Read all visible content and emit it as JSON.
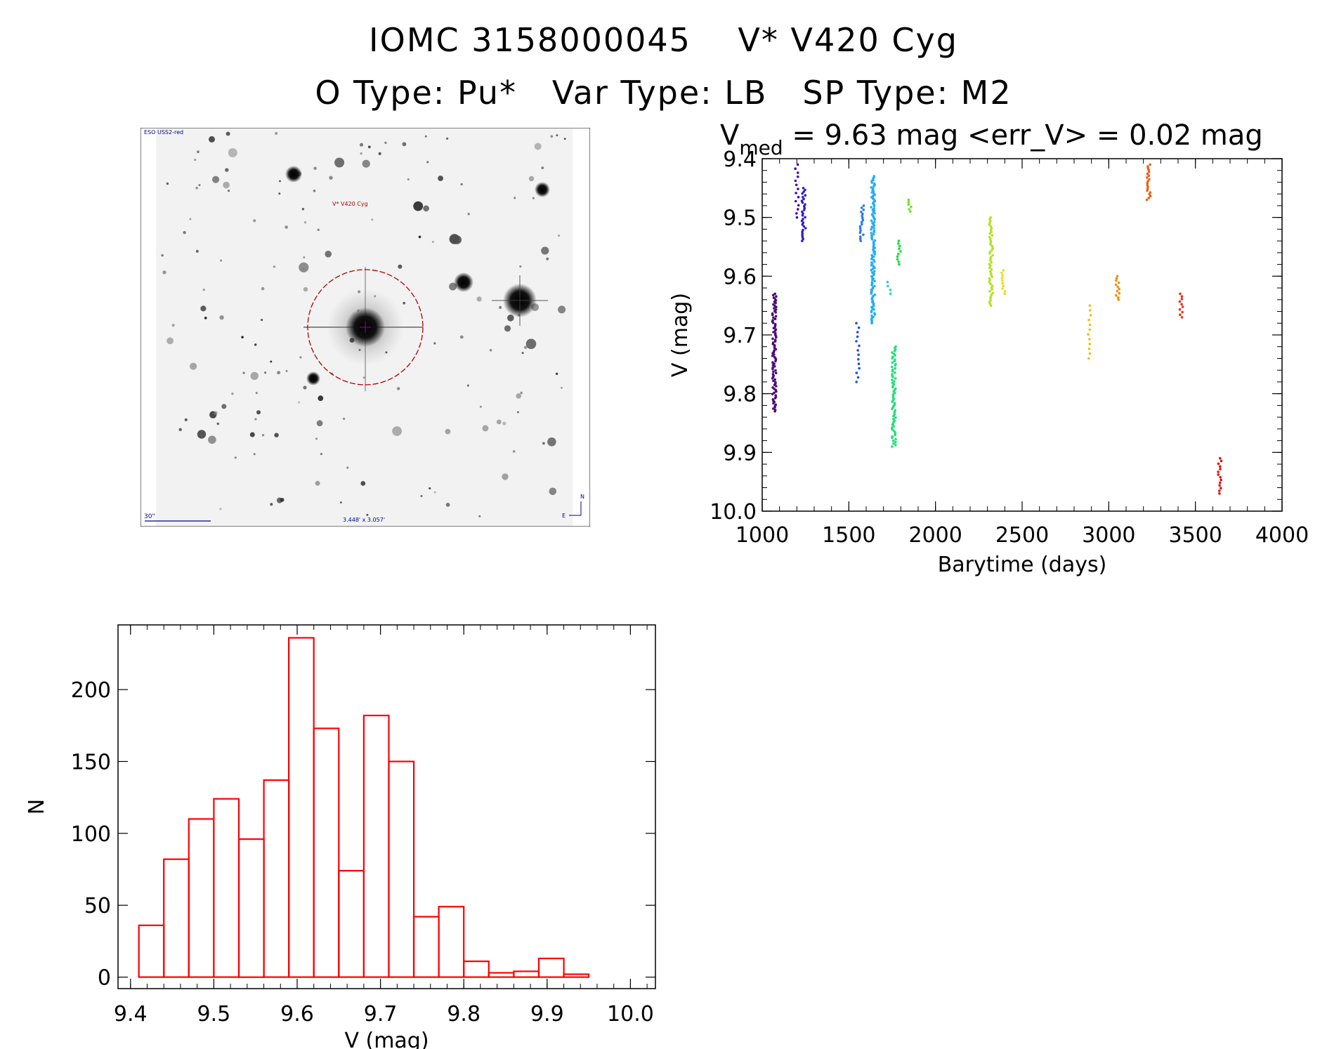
{
  "header": {
    "line1": "IOMC 3158000045    V* V420 Cyg",
    "line2": "O Type: Pu*   Var Type: LB   SP Type: M2"
  },
  "finder": {
    "top_left_label": "ESO USS2-red",
    "target_label": "V* V420 Cyg",
    "scale_label": "30\"",
    "size_label": "3.448' x 3.057'",
    "north_label": "N",
    "east_label": "E"
  },
  "lightcurve": {
    "title_v": "V",
    "title_sub": "med",
    "title_rest": " = 9.63 mag <err_V> = 0.02 mag"
  },
  "chart_data": [
    {
      "type": "scatter",
      "xlabel": "Barytime (days)",
      "ylabel": "V (mag)",
      "xlim": [
        1000,
        4000
      ],
      "ylim": [
        10.0,
        9.4
      ],
      "y_inverted": true,
      "x_ticks": [
        "1000",
        "1500",
        "2000",
        "2500",
        "3000",
        "3500",
        "4000"
      ],
      "y_ticks": [
        "9.4",
        "9.5",
        "9.6",
        "9.7",
        "9.8",
        "9.9",
        "10.0"
      ],
      "groups": [
        {
          "x": 1070,
          "ymin": 9.63,
          "ymax": 9.83,
          "n": 90,
          "color": "#4b0a7a"
        },
        {
          "x": 1200,
          "ymin": 9.41,
          "ymax": 9.5,
          "n": 14,
          "color": "#3c10a8"
        },
        {
          "x": 1240,
          "ymin": 9.45,
          "ymax": 9.54,
          "n": 30,
          "color": "#2a1fd0"
        },
        {
          "x": 1550,
          "ymin": 9.68,
          "ymax": 9.78,
          "n": 14,
          "color": "#1f52e0"
        },
        {
          "x": 1575,
          "ymin": 9.48,
          "ymax": 9.54,
          "n": 18,
          "color": "#2b78f0"
        },
        {
          "x": 1640,
          "ymin": 9.43,
          "ymax": 9.68,
          "n": 120,
          "color": "#22aef0"
        },
        {
          "x": 1730,
          "ymin": 9.61,
          "ymax": 9.63,
          "n": 4,
          "color": "#22d8b0"
        },
        {
          "x": 1760,
          "ymin": 9.72,
          "ymax": 9.89,
          "n": 70,
          "color": "#22e07a"
        },
        {
          "x": 1790,
          "ymin": 9.54,
          "ymax": 9.58,
          "n": 10,
          "color": "#22d840"
        },
        {
          "x": 1850,
          "ymin": 9.47,
          "ymax": 9.49,
          "n": 6,
          "color": "#6ee020"
        },
        {
          "x": 2320,
          "ymin": 9.5,
          "ymax": 9.65,
          "n": 50,
          "color": "#b8e020"
        },
        {
          "x": 2390,
          "ymin": 9.59,
          "ymax": 9.63,
          "n": 10,
          "color": "#e8e010"
        },
        {
          "x": 2890,
          "ymin": 9.65,
          "ymax": 9.74,
          "n": 12,
          "color": "#f0c010"
        },
        {
          "x": 3050,
          "ymin": 9.6,
          "ymax": 9.64,
          "n": 12,
          "color": "#f09010"
        },
        {
          "x": 3230,
          "ymin": 9.41,
          "ymax": 9.47,
          "n": 20,
          "color": "#f06018"
        },
        {
          "x": 3420,
          "ymin": 9.63,
          "ymax": 9.67,
          "n": 10,
          "color": "#e83018"
        },
        {
          "x": 3640,
          "ymin": 9.91,
          "ymax": 9.97,
          "n": 14,
          "color": "#e01010"
        }
      ]
    },
    {
      "type": "bar",
      "xlabel": "V (mag)",
      "ylabel": "N",
      "xlim": [
        9.385,
        10.03
      ],
      "ylim": [
        -8,
        245
      ],
      "x_ticks": [
        "9.4",
        "9.5",
        "9.6",
        "9.7",
        "9.8",
        "9.9",
        "10.0"
      ],
      "y_ticks": [
        "0",
        "50",
        "100",
        "150",
        "200"
      ],
      "bin_start": 9.41,
      "bin_width": 0.03,
      "values": [
        36,
        82,
        110,
        124,
        96,
        137,
        236,
        173,
        74,
        182,
        150,
        42,
        49,
        11,
        3,
        4,
        13,
        2
      ],
      "bar_color": "#ff0000"
    }
  ]
}
